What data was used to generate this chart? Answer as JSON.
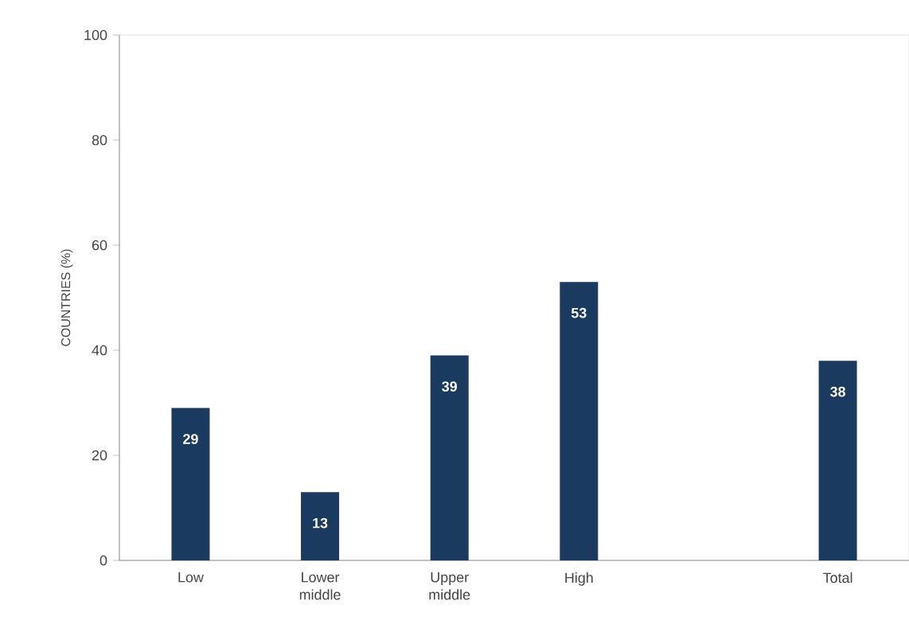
{
  "chart_data": {
    "type": "bar",
    "ylabel": "COUNTRIES (%)",
    "categories": [
      "Low",
      "Lower middle",
      "Upper middle",
      "High",
      null,
      "Total"
    ],
    "values": [
      29,
      13,
      39,
      53,
      null,
      38
    ],
    "color": "#1b3a5f",
    "ylim": [
      0,
      100
    ],
    "yticks": [
      0,
      20,
      40,
      60,
      80,
      100
    ],
    "data_labels": true
  }
}
